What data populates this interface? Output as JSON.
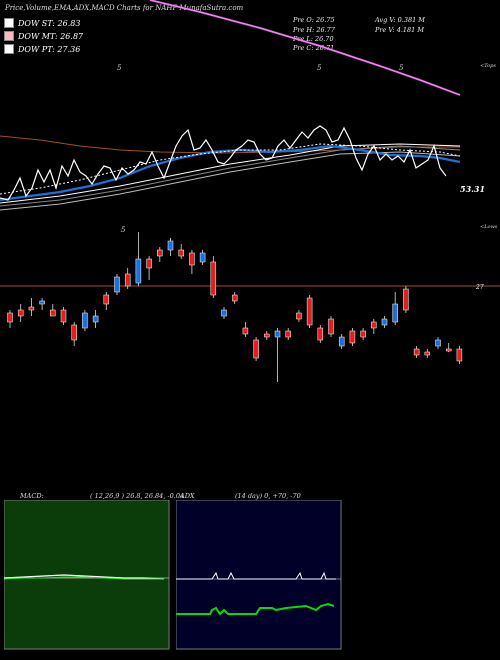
{
  "title": "Price,Volume,EMA,ADX,MACD Charts for NAHP MunafaSutra.com",
  "legend": [
    {
      "label": "DOW ST: 26.83",
      "color": "#fff"
    },
    {
      "label": "DOW MT: 26.87",
      "color": "#ffb6c1"
    },
    {
      "label": "DOW PT: 27.36",
      "color": "#ffffff"
    }
  ],
  "stats": {
    "open": "Pre  O: 26.75",
    "high": "Pre  H: 26.77",
    "low": "Pre  L: 26.70",
    "close": "Pre  C: 26.71",
    "avgv": "Avg V: 0.381 M",
    "prev": "Pre  V: 4.181 M"
  },
  "labels": {
    "tops": "<Tops",
    "lows": "<Lows",
    "ema_value": "53.31",
    "price_level": "27"
  },
  "macd": {
    "label": "MACD:",
    "params": "( 12,26,9 ) 26.8, 26.84, -0.04"
  },
  "adx": {
    "label": "ADX",
    "params": "(14  day) 0, +70, -70"
  },
  "chart_data": {
    "type": "candlestick",
    "title": "Price,Volume,EMA,ADX,MACD Charts for NAHP MunafaSutra.com",
    "price_reference_line": 27,
    "candles": [
      {
        "o": 26.4,
        "c": 26.55,
        "h": 26.6,
        "l": 26.3,
        "up": false
      },
      {
        "o": 26.6,
        "c": 26.5,
        "h": 26.7,
        "l": 26.4,
        "up": false
      },
      {
        "o": 26.6,
        "c": 26.65,
        "h": 26.8,
        "l": 26.5,
        "up": false
      },
      {
        "o": 26.7,
        "c": 26.75,
        "h": 26.8,
        "l": 26.6,
        "up": true
      },
      {
        "o": 26.6,
        "c": 26.5,
        "h": 26.7,
        "l": 26.5,
        "up": false
      },
      {
        "o": 26.6,
        "c": 26.4,
        "h": 26.65,
        "l": 26.35,
        "up": false
      },
      {
        "o": 26.35,
        "c": 26.1,
        "h": 26.4,
        "l": 26.0,
        "up": false
      },
      {
        "o": 26.3,
        "c": 26.55,
        "h": 26.6,
        "l": 26.25,
        "up": true
      },
      {
        "o": 26.4,
        "c": 26.5,
        "h": 26.6,
        "l": 26.3,
        "up": true
      },
      {
        "o": 26.7,
        "c": 26.85,
        "h": 26.9,
        "l": 26.6,
        "up": false
      },
      {
        "o": 26.9,
        "c": 27.15,
        "h": 27.2,
        "l": 26.85,
        "up": true
      },
      {
        "o": 27.0,
        "c": 27.2,
        "h": 27.3,
        "l": 26.95,
        "up": false
      },
      {
        "o": 27.05,
        "c": 27.45,
        "h": 27.9,
        "l": 27.0,
        "up": true
      },
      {
        "o": 27.3,
        "c": 27.45,
        "h": 27.5,
        "l": 27.1,
        "up": false
      },
      {
        "o": 27.5,
        "c": 27.6,
        "h": 27.65,
        "l": 27.4,
        "up": false
      },
      {
        "o": 27.6,
        "c": 27.75,
        "h": 27.8,
        "l": 27.5,
        "up": true
      },
      {
        "o": 27.6,
        "c": 27.5,
        "h": 27.7,
        "l": 27.45,
        "up": false
      },
      {
        "o": 27.55,
        "c": 27.35,
        "h": 27.6,
        "l": 27.2,
        "up": false
      },
      {
        "o": 27.4,
        "c": 27.55,
        "h": 27.6,
        "l": 27.35,
        "up": true
      },
      {
        "o": 27.4,
        "c": 26.85,
        "h": 27.5,
        "l": 26.8,
        "up": false
      },
      {
        "o": 26.6,
        "c": 26.5,
        "h": 26.65,
        "l": 26.45,
        "up": true
      },
      {
        "o": 26.85,
        "c": 26.75,
        "h": 26.9,
        "l": 26.7,
        "up": false
      },
      {
        "o": 26.3,
        "c": 26.2,
        "h": 26.4,
        "l": 26.15,
        "up": false
      },
      {
        "o": 26.1,
        "c": 25.8,
        "h": 26.15,
        "l": 25.75,
        "up": false
      },
      {
        "o": 26.2,
        "c": 26.15,
        "h": 26.25,
        "l": 26.1,
        "up": false
      },
      {
        "o": 26.15,
        "c": 26.25,
        "h": 26.3,
        "l": 25.4,
        "up": true
      },
      {
        "o": 26.25,
        "c": 26.15,
        "h": 26.3,
        "l": 26.1,
        "up": false
      },
      {
        "o": 26.55,
        "c": 26.45,
        "h": 26.6,
        "l": 26.4,
        "up": false
      },
      {
        "o": 26.8,
        "c": 26.35,
        "h": 26.85,
        "l": 26.3,
        "up": false
      },
      {
        "o": 26.3,
        "c": 26.1,
        "h": 26.35,
        "l": 26.05,
        "up": false
      },
      {
        "o": 26.45,
        "c": 26.2,
        "h": 26.5,
        "l": 26.15,
        "up": false
      },
      {
        "o": 26.15,
        "c": 26.0,
        "h": 26.2,
        "l": 25.95,
        "up": true
      },
      {
        "o": 26.25,
        "c": 26.05,
        "h": 26.3,
        "l": 26.0,
        "up": false
      },
      {
        "o": 26.25,
        "c": 26.15,
        "h": 26.3,
        "l": 26.1,
        "up": false
      },
      {
        "o": 26.4,
        "c": 26.3,
        "h": 26.45,
        "l": 26.2,
        "up": false
      },
      {
        "o": 26.35,
        "c": 26.45,
        "h": 26.5,
        "l": 26.3,
        "up": true
      },
      {
        "o": 26.4,
        "c": 26.7,
        "h": 26.9,
        "l": 26.35,
        "up": true
      },
      {
        "o": 26.95,
        "c": 26.6,
        "h": 27.0,
        "l": 26.55,
        "up": false
      },
      {
        "o": 25.95,
        "c": 25.85,
        "h": 26.0,
        "l": 25.8,
        "up": false
      },
      {
        "o": 25.9,
        "c": 25.85,
        "h": 25.95,
        "l": 25.8,
        "up": false
      },
      {
        "o": 26.0,
        "c": 26.1,
        "h": 26.15,
        "l": 25.95,
        "up": true
      },
      {
        "o": 25.95,
        "c": 25.95,
        "h": 26.05,
        "l": 25.9,
        "up": false
      },
      {
        "o": 25.95,
        "c": 25.75,
        "h": 26.0,
        "l": 25.7,
        "up": false
      }
    ]
  }
}
